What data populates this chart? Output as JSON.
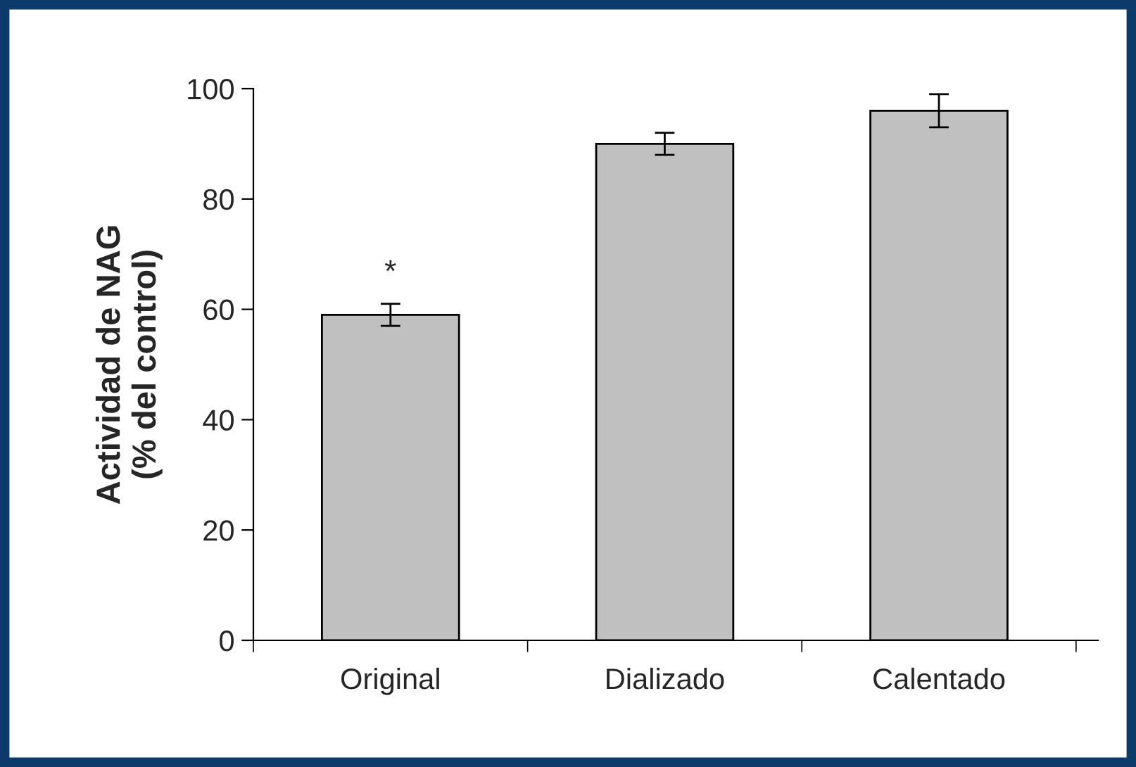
{
  "chart_data": {
    "type": "bar",
    "ylabel": "Actividad de NAG\n(% del control)",
    "categories": [
      "Original",
      "Dializado",
      "Calentado"
    ],
    "values": [
      59,
      90,
      96
    ],
    "errors": [
      2,
      2,
      3
    ],
    "color": "#c0c0c0",
    "ylim": [
      0,
      100
    ],
    "yticks": [
      0,
      20,
      40,
      60,
      80,
      100
    ],
    "grid": false,
    "legend": false,
    "annotations": [
      {
        "text": "*",
        "x": "Original",
        "y": 61
      }
    ]
  }
}
